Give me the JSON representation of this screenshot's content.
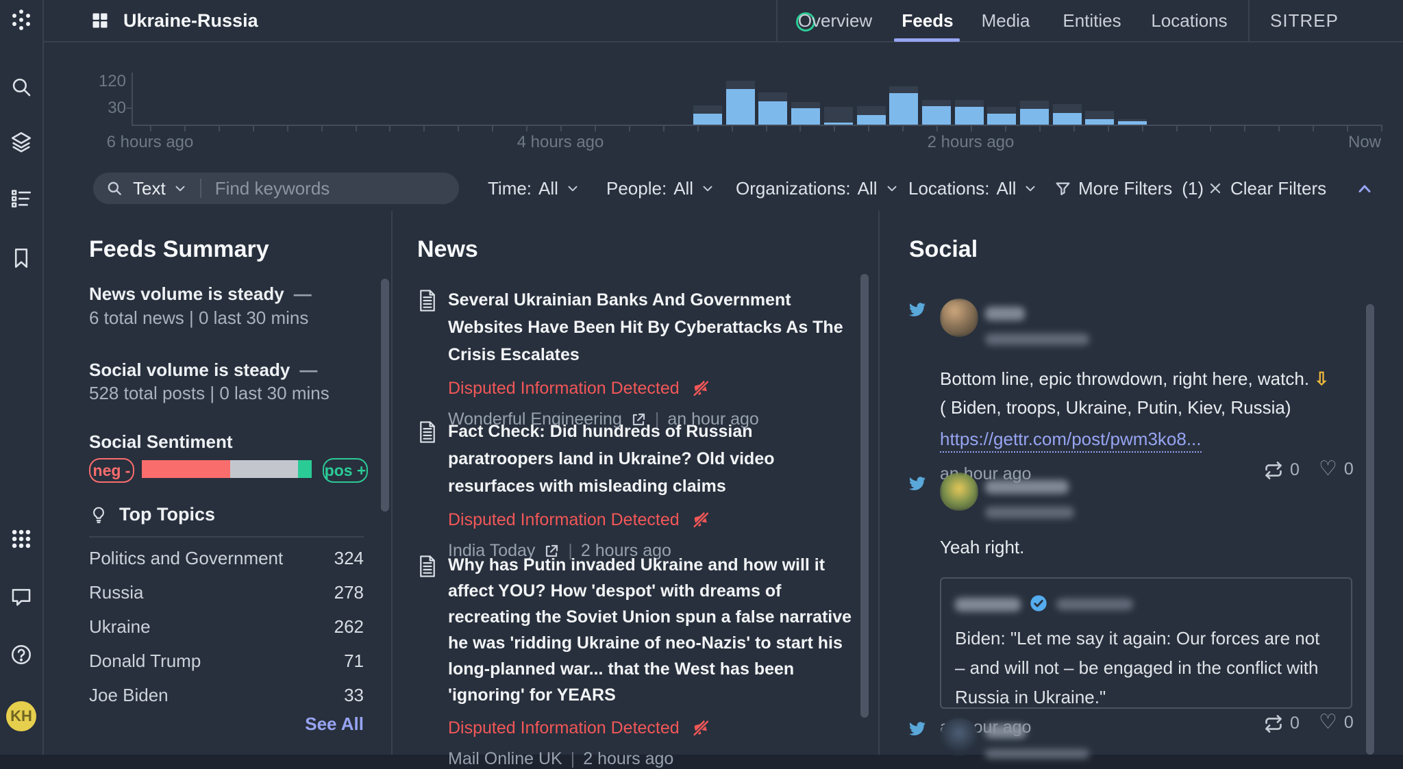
{
  "app": {
    "title": "Ukraine-Russia",
    "avatar_initials": "KH"
  },
  "topbar": {
    "tabs": [
      {
        "label": "Overview",
        "active": false
      },
      {
        "label": "Feeds",
        "active": true
      },
      {
        "label": "Media",
        "active": false
      },
      {
        "label": "Entities",
        "active": false
      },
      {
        "label": "Locations",
        "active": false
      }
    ],
    "sitrep_label": "SITREP"
  },
  "colors": {
    "accent": "#97a4f2",
    "flag_red": "#f25757",
    "bar_blue": "#7eb9ec",
    "bar_cap": "#343e4d",
    "positive_green": "#2bcb96",
    "status_ring": "#2bcb96"
  },
  "chart_data": {
    "type": "bar",
    "stacked": true,
    "title": "",
    "xlabel": "",
    "ylabel": "",
    "x_labels": [
      "6 hours ago",
      "4 hours ago",
      "2 hours ago",
      "Now"
    ],
    "y_ticks": [
      30,
      120
    ],
    "ylim": [
      0,
      140
    ],
    "grid": false,
    "legend": false,
    "series": [
      {
        "name": "social posts",
        "color": "#7eb9ec",
        "values": [
          36,
          115,
          76,
          53,
          7,
          31,
          102,
          60,
          58,
          36,
          51,
          38,
          18,
          11
        ]
      },
      {
        "name": "news",
        "color": "#343e4d",
        "values": [
          27,
          27,
          29,
          20,
          51,
          29,
          22,
          20,
          22,
          22,
          27,
          29,
          27,
          7
        ]
      }
    ]
  },
  "filters": {
    "search_type": "Text",
    "search_placeholder": "Find keywords",
    "dropdowns": [
      {
        "label": "Time:",
        "value": "All"
      },
      {
        "label": "People:",
        "value": "All"
      },
      {
        "label": "Organizations:",
        "value": "All"
      },
      {
        "label": "Locations:",
        "value": "All"
      }
    ],
    "more_filters": "More Filters",
    "more_filters_count": "(1)",
    "clear_filters": "Clear Filters"
  },
  "summary": {
    "heading": "Feeds Summary",
    "news_trend": "News volume is steady",
    "news_trend_glyph": "—",
    "news_stats": "6 total news  |  0 last 30 mins",
    "social_trend": "Social volume is steady",
    "social_trend_glyph": "—",
    "social_stats": "528 total posts  |  0 last 30 mins",
    "sentiment": {
      "heading": "Social Sentiment",
      "neg_label": "neg -",
      "pos_label": "pos +",
      "segments": {
        "negative_pct": 52,
        "neutral_pct": 40,
        "positive_pct": 8
      },
      "colors": {
        "negative": "#fa6d6d",
        "neutral": "#c3c7cd",
        "positive": "#2bcb96"
      }
    },
    "topics": {
      "heading": "Top Topics",
      "rows": [
        {
          "label": "Politics and Government",
          "count": "324"
        },
        {
          "label": "Russia",
          "count": "278"
        },
        {
          "label": "Ukraine",
          "count": "262"
        },
        {
          "label": "Donald Trump",
          "count": "71"
        },
        {
          "label": "Joe Biden",
          "count": "33"
        }
      ],
      "see_all": "See All"
    }
  },
  "news": {
    "heading": "News",
    "separator": "|",
    "flag_label": "Disputed Information Detected",
    "items": [
      {
        "title": "Several Ukrainian Banks And Government Websites Have Been Hit By Cyberattacks As The Crisis Escalates",
        "source": "Wonderful Engineering",
        "time": "an hour ago",
        "external_link": true
      },
      {
        "title": "Fact Check: Did hundreds of Russian paratroopers land in Ukraine? Old video resurfaces with misleading claims",
        "source": "India Today",
        "time": "2 hours ago",
        "external_link": true
      },
      {
        "title": "Why has Putin invaded Ukraine and how will it affect YOU? How 'despot' with dreams of recreating the Soviet Union spun a false narrative he was 'ridding Ukraine of neo-Nazis' to start his long-planned war... that the West has been 'ignoring' for YEARS",
        "source": "Mail Online UK",
        "time": "2 hours ago",
        "external_link": false
      }
    ]
  },
  "social": {
    "heading": "Social",
    "posts": [
      {
        "network": "twitter",
        "text": "Bottom line, epic throwdown, right here, watch. 👇 ( Biden, troops, Ukraine, Putin, Kiev, Russia)",
        "link": "https://gettr.com/post/pwm3ko8...",
        "time": "an hour ago",
        "retweets": "0",
        "likes": "0"
      },
      {
        "network": "twitter",
        "text": "Yeah right.",
        "quote": {
          "verified": true,
          "text": "Biden: \"Let me say it again: Our forces are not – and will not – be engaged in the conflict with Russia in Ukraine.\""
        },
        "time": "an hour ago",
        "retweets": "0",
        "likes": "0"
      },
      {
        "network": "twitter"
      }
    ]
  }
}
